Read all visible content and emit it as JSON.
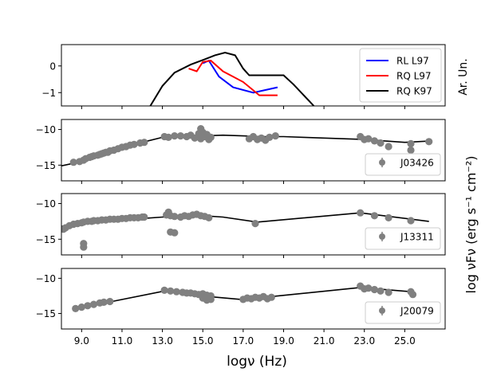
{
  "chart_data": {
    "type": "line",
    "xlabel": "logν (Hz)",
    "x_ticks": [
      "9.0",
      "11.0",
      "13.0",
      "15.0",
      "17.0",
      "19.0",
      "21.0",
      "23.0",
      "25.0"
    ],
    "x_tick_values": [
      9,
      11,
      13,
      15,
      17,
      19,
      21,
      23,
      25
    ],
    "xlim": [
      8.0,
      27.0
    ],
    "ylabel_right": "log νFν (erg s⁻¹ cm⁻²)",
    "colors": {
      "rl": "#0000ff",
      "rq_l97": "#ff0000",
      "rq_k97": "#000000",
      "points": "#808080",
      "model": "#000000"
    },
    "panels": [
      {
        "id": "template",
        "ylabel": "Ar. Un.",
        "ylim": [
          -1.5,
          0.8
        ],
        "yticks": [
          0,
          -1
        ],
        "ytick_labels": [
          "0",
          "−1"
        ],
        "legend": [
          "RL L97",
          "RQ L97",
          "RQ K97"
        ],
        "series": [
          {
            "name": "RL L97",
            "color_key": "rl",
            "x": [
              15.0,
              15.3,
              15.8,
              16.5,
              17.5,
              18.7
            ],
            "y": [
              0.1,
              0.2,
              -0.4,
              -0.8,
              -1.0,
              -0.8
            ]
          },
          {
            "name": "RQ L97",
            "color_key": "rq_l97",
            "x": [
              14.3,
              14.7,
              15.0,
              15.4,
              16.0,
              17.0,
              17.8,
              18.7
            ],
            "y": [
              -0.1,
              -0.2,
              0.15,
              0.2,
              -0.2,
              -0.6,
              -1.1,
              -1.1
            ]
          },
          {
            "name": "RQ K97",
            "color_key": "rq_k97",
            "x": [
              12.4,
              13.0,
              13.6,
              14.4,
              15.1,
              15.6,
              16.1,
              16.6,
              17.0,
              17.3,
              17.5,
              19.0,
              19.5,
              20.5
            ],
            "y": [
              -1.5,
              -0.75,
              -0.25,
              0.05,
              0.25,
              0.4,
              0.5,
              0.4,
              -0.1,
              -0.35,
              -0.35,
              -0.35,
              -0.7,
              -1.5
            ]
          }
        ]
      },
      {
        "id": "J03426",
        "legend_label": "J03426",
        "ylim": [
          -17.2,
          -8.6
        ],
        "yticks": [
          -10,
          -15
        ],
        "ytick_labels": [
          "−10",
          "−15"
        ],
        "model": {
          "x": [
            8.0,
            9.0,
            10.0,
            11.0,
            12.0,
            13.0,
            14.0,
            15.0,
            16.0,
            17.0,
            18.0,
            19.0,
            20.0,
            21.0,
            22.0,
            23.0,
            24.0,
            25.0,
            26.3
          ],
          "y": [
            -15.1,
            -14.5,
            -13.7,
            -12.8,
            -11.8,
            -11.1,
            -10.9,
            -10.9,
            -10.8,
            -10.9,
            -11.0,
            -11.0,
            -11.1,
            -11.2,
            -11.3,
            -11.4,
            -11.6,
            -11.8,
            -11.6
          ]
        },
        "points": {
          "x": [
            8.6,
            8.9,
            9.1,
            9.2,
            9.4,
            9.5,
            9.6,
            9.8,
            9.9,
            10.0,
            10.1,
            10.2,
            10.3,
            10.4,
            10.6,
            10.8,
            11.0,
            11.2,
            11.4,
            11.6,
            11.9,
            12.1,
            13.1,
            13.3,
            13.6,
            13.9,
            14.2,
            14.4,
            14.6,
            14.8,
            14.9,
            15.0,
            15.1,
            15.2,
            15.3,
            15.4,
            14.9,
            15.0,
            17.3,
            17.5,
            17.7,
            17.9,
            18.1,
            18.3,
            18.6,
            22.8,
            23.0,
            23.2,
            23.5,
            23.8,
            24.2,
            25.3,
            25.3,
            26.2
          ],
          "y": [
            -14.6,
            -14.5,
            -14.3,
            -14.1,
            -13.9,
            -13.8,
            -13.7,
            -13.6,
            -13.5,
            -13.4,
            -13.3,
            -13.2,
            -13.2,
            -13.0,
            -12.9,
            -12.7,
            -12.5,
            -12.4,
            -12.2,
            -12.1,
            -11.9,
            -11.8,
            -11.0,
            -11.1,
            -10.9,
            -10.9,
            -11.0,
            -10.8,
            -11.2,
            -10.6,
            -11.3,
            -10.8,
            -11.0,
            -10.7,
            -11.4,
            -11.1,
            -9.9,
            -10.4,
            -11.3,
            -11.0,
            -11.4,
            -11.2,
            -11.5,
            -11.1,
            -10.9,
            -11.0,
            -11.4,
            -11.3,
            -11.6,
            -11.9,
            -12.4,
            -12.0,
            -12.9,
            -11.7
          ]
        }
      },
      {
        "id": "J13311",
        "legend_label": "J13311",
        "ylim": [
          -17.2,
          -8.6
        ],
        "yticks": [
          -10,
          -15
        ],
        "ytick_labels": [
          "−10",
          "−15"
        ],
        "model": {
          "x": [
            8.0,
            9.0,
            10.0,
            11.0,
            12.0,
            13.0,
            14.0,
            15.0,
            16.0,
            17.7,
            22.8,
            26.2
          ],
          "y": [
            -13.2,
            -12.7,
            -12.4,
            -12.2,
            -12.1,
            -11.9,
            -11.8,
            -11.7,
            -11.9,
            -12.6,
            -11.3,
            -12.5
          ]
        },
        "points": {
          "x": [
            8.1,
            8.2,
            8.4,
            8.6,
            8.8,
            9.0,
            9.1,
            9.3,
            9.5,
            9.6,
            9.8,
            10.0,
            10.2,
            10.4,
            10.6,
            10.8,
            11.0,
            11.2,
            11.4,
            11.6,
            11.8,
            12.0,
            12.1,
            9.1,
            9.1,
            13.2,
            13.4,
            13.6,
            13.9,
            14.1,
            14.3,
            14.5,
            14.7,
            14.9,
            15.1,
            15.3,
            13.4,
            13.6,
            13.3,
            17.6,
            22.8,
            23.5,
            24.2,
            25.3
          ],
          "y": [
            -13.6,
            -13.4,
            -13.1,
            -12.9,
            -12.8,
            -12.7,
            -12.6,
            -12.5,
            -12.5,
            -12.4,
            -12.4,
            -12.3,
            -12.3,
            -12.2,
            -12.2,
            -12.2,
            -12.1,
            -12.1,
            -12.0,
            -12.0,
            -12.0,
            -11.9,
            -11.9,
            -15.6,
            -16.1,
            -11.6,
            -11.7,
            -11.8,
            -11.9,
            -11.7,
            -11.8,
            -11.6,
            -11.5,
            -11.7,
            -11.8,
            -12.0,
            -14.0,
            -14.1,
            -11.2,
            -12.8,
            -11.3,
            -11.7,
            -12.0,
            -12.4
          ]
        }
      },
      {
        "id": "J20079",
        "legend_label": "J20079",
        "ylim": [
          -17.2,
          -8.6
        ],
        "yticks": [
          -10,
          -15
        ],
        "ytick_labels": [
          "−10",
          "−15"
        ],
        "model": {
          "x": [
            8.7,
            10.5,
            13.1,
            15.3,
            16.9,
            18.4,
            22.8,
            25.3
          ],
          "y": [
            -14.4,
            -13.3,
            -11.8,
            -12.6,
            -13.0,
            -12.6,
            -11.3,
            -11.9
          ]
        },
        "points": {
          "x": [
            8.7,
            9.0,
            9.3,
            9.6,
            9.9,
            10.1,
            10.4,
            13.1,
            13.4,
            13.7,
            14.0,
            14.2,
            14.4,
            14.6,
            14.8,
            15.0,
            15.2,
            15.4,
            15.0,
            15.2,
            15.4,
            17.0,
            17.2,
            17.4,
            17.6,
            17.8,
            18.0,
            18.2,
            18.4,
            22.8,
            23.0,
            23.2,
            23.5,
            23.8,
            24.2,
            25.3,
            25.4
          ],
          "y": [
            -14.3,
            -14.1,
            -13.9,
            -13.7,
            -13.5,
            -13.4,
            -13.3,
            -11.7,
            -11.8,
            -11.9,
            -12.0,
            -12.1,
            -12.1,
            -12.2,
            -12.3,
            -12.2,
            -12.4,
            -12.5,
            -12.8,
            -13.1,
            -13.0,
            -13.0,
            -12.8,
            -12.9,
            -12.7,
            -12.8,
            -12.6,
            -12.9,
            -12.7,
            -11.1,
            -11.5,
            -11.4,
            -11.6,
            -11.8,
            -12.0,
            -11.9,
            -12.3
          ]
        }
      }
    ]
  }
}
